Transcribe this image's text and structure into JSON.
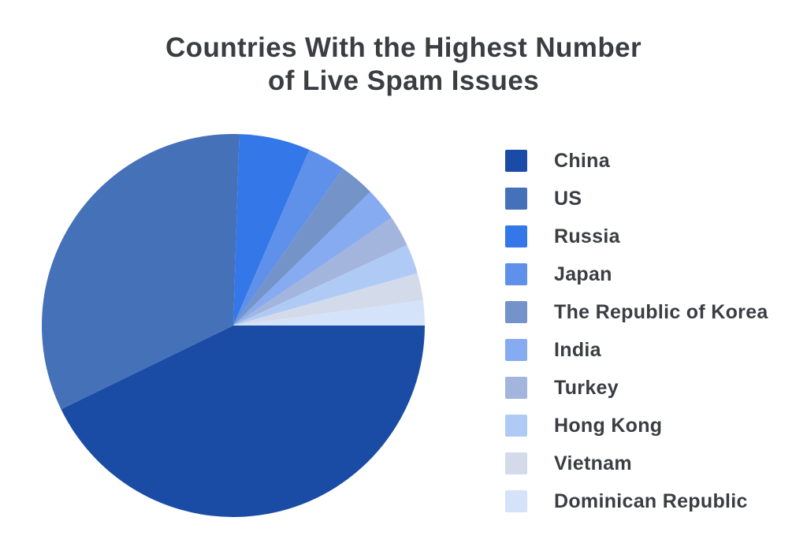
{
  "title": {
    "line1": "Countries With the Highest Number",
    "line2": "of Live Spam Issues"
  },
  "text_color": "#3A3D42",
  "background_color": "#FFFFFF",
  "chart_data": {
    "type": "pie",
    "title": "Countries With the Highest Number of Live Spam Issues",
    "categories": [
      "China",
      "US",
      "Russia",
      "Japan",
      "The Republic of Korea",
      "India",
      "Turkey",
      "Hong Kong",
      "Vietnam",
      "Dominican Republic"
    ],
    "values": [
      42.8,
      32.7,
      6.0,
      3.2,
      3.0,
      2.8,
      2.6,
      2.5,
      2.3,
      2.1
    ],
    "values_unit": "percent of circle (estimated from slice angles; no numeric labels shown)",
    "colors": [
      "#1B4CA5",
      "#4571B8",
      "#3377E8",
      "#5F90EA",
      "#7493C8",
      "#86ABF0",
      "#A3B5DC",
      "#AFCBF5",
      "#D3DAEA",
      "#D5E3FA"
    ],
    "start_angle_deg_clockwise_from_east": 0,
    "direction": "clockwise",
    "legend_position": "right",
    "data_labels": false,
    "grid": false
  }
}
